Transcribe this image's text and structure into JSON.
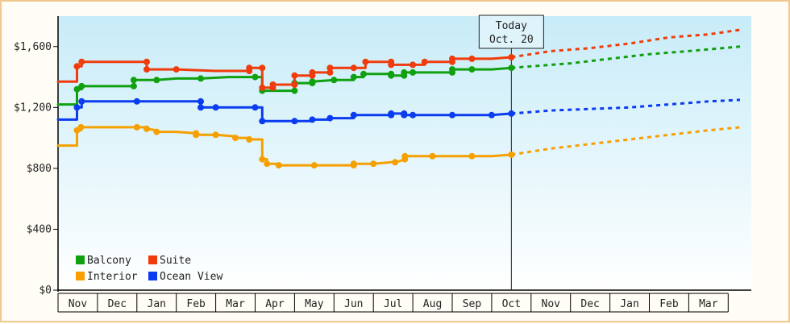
{
  "chart_data": {
    "type": "line",
    "today": {
      "title": "Today",
      "date": "Oct. 20"
    },
    "ylim": [
      0,
      1800
    ],
    "y_ticks": [
      {
        "value": 0,
        "label": "$0"
      },
      {
        "value": 400,
        "label": "$400"
      },
      {
        "value": 800,
        "label": "$800"
      },
      {
        "value": 1200,
        "label": "$1,200"
      },
      {
        "value": 1600,
        "label": "$1,600"
      }
    ],
    "x_months": [
      "Nov",
      "Dec",
      "Jan",
      "Feb",
      "Mar",
      "Apr",
      "May",
      "Jun",
      "Jul",
      "Aug",
      "Sep",
      "Oct",
      "Nov",
      "Dec",
      "Jan",
      "Feb",
      "Mar"
    ],
    "today_month_index": 11.5,
    "grid": false,
    "legend_position": "bottom-left",
    "series": [
      {
        "name": "Balcony",
        "color": "#10a010",
        "points": [
          [
            0.0,
            1220
          ],
          [
            0.48,
            1220
          ],
          [
            0.48,
            1320
          ],
          [
            0.6,
            1320
          ],
          [
            0.6,
            1340
          ],
          [
            1.0,
            1340
          ],
          [
            1.92,
            1340
          ],
          [
            1.92,
            1380
          ],
          [
            2.5,
            1380
          ],
          [
            3.0,
            1390
          ],
          [
            3.62,
            1390
          ],
          [
            4.33,
            1400
          ],
          [
            5.0,
            1400
          ],
          [
            5.18,
            1400
          ],
          [
            5.18,
            1310
          ],
          [
            5.3,
            1310
          ],
          [
            6.0,
            1310
          ],
          [
            6.0,
            1360
          ],
          [
            6.45,
            1360
          ],
          [
            6.45,
            1370
          ],
          [
            7.0,
            1380
          ],
          [
            7.5,
            1380
          ],
          [
            7.5,
            1400
          ],
          [
            7.75,
            1400
          ],
          [
            7.75,
            1420
          ],
          [
            8.0,
            1420
          ],
          [
            8.45,
            1420
          ],
          [
            8.45,
            1410
          ],
          [
            8.78,
            1410
          ],
          [
            8.78,
            1430
          ],
          [
            9.0,
            1430
          ],
          [
            9.55,
            1430
          ],
          [
            10.0,
            1430
          ],
          [
            10.0,
            1450
          ],
          [
            10.5,
            1450
          ],
          [
            11.0,
            1450
          ],
          [
            11.5,
            1460
          ]
        ],
        "forecast": [
          [
            11.5,
            1460
          ],
          [
            13.0,
            1490
          ],
          [
            14.0,
            1520
          ],
          [
            15.0,
            1550
          ],
          [
            16.0,
            1570
          ],
          [
            17.3,
            1600
          ]
        ]
      },
      {
        "name": "Suite",
        "color": "#f03c0c",
        "points": [
          [
            0.0,
            1370
          ],
          [
            0.48,
            1370
          ],
          [
            0.48,
            1470
          ],
          [
            0.6,
            1470
          ],
          [
            0.6,
            1500
          ],
          [
            1.0,
            1500
          ],
          [
            2.25,
            1500
          ],
          [
            2.25,
            1450
          ],
          [
            3.0,
            1450
          ],
          [
            4.0,
            1440
          ],
          [
            4.85,
            1440
          ],
          [
            4.85,
            1460
          ],
          [
            5.18,
            1460
          ],
          [
            5.18,
            1330
          ],
          [
            5.45,
            1330
          ],
          [
            5.45,
            1350
          ],
          [
            6.0,
            1350
          ],
          [
            6.0,
            1410
          ],
          [
            6.45,
            1410
          ],
          [
            6.45,
            1430
          ],
          [
            6.9,
            1430
          ],
          [
            6.9,
            1460
          ],
          [
            7.5,
            1460
          ],
          [
            7.8,
            1460
          ],
          [
            7.8,
            1500
          ],
          [
            8.0,
            1500
          ],
          [
            8.45,
            1500
          ],
          [
            8.45,
            1480
          ],
          [
            9.0,
            1480
          ],
          [
            9.3,
            1480
          ],
          [
            9.3,
            1500
          ],
          [
            9.55,
            1500
          ],
          [
            10.0,
            1500
          ],
          [
            10.0,
            1520
          ],
          [
            10.5,
            1520
          ],
          [
            11.0,
            1520
          ],
          [
            11.5,
            1530
          ]
        ],
        "forecast": [
          [
            11.5,
            1530
          ],
          [
            12.5,
            1570
          ],
          [
            13.5,
            1590
          ],
          [
            14.5,
            1620
          ],
          [
            15.5,
            1660
          ],
          [
            16.5,
            1680
          ],
          [
            17.3,
            1710
          ]
        ]
      },
      {
        "name": "Interior",
        "color": "#f5a000",
        "points": [
          [
            0.0,
            950
          ],
          [
            0.48,
            950
          ],
          [
            0.48,
            1050
          ],
          [
            0.58,
            1050
          ],
          [
            0.58,
            1070
          ],
          [
            1.0,
            1070
          ],
          [
            2.0,
            1070
          ],
          [
            2.25,
            1070
          ],
          [
            2.25,
            1060
          ],
          [
            2.5,
            1050
          ],
          [
            2.5,
            1040
          ],
          [
            3.0,
            1040
          ],
          [
            3.5,
            1030
          ],
          [
            3.5,
            1020
          ],
          [
            4.0,
            1020
          ],
          [
            4.5,
            1010
          ],
          [
            4.5,
            1000
          ],
          [
            4.85,
            1000
          ],
          [
            4.85,
            990
          ],
          [
            5.18,
            990
          ],
          [
            5.18,
            860
          ],
          [
            5.3,
            860
          ],
          [
            5.3,
            830
          ],
          [
            5.6,
            830
          ],
          [
            5.6,
            820
          ],
          [
            6.0,
            820
          ],
          [
            6.5,
            820
          ],
          [
            7.0,
            820
          ],
          [
            7.5,
            820
          ],
          [
            7.5,
            830
          ],
          [
            8.0,
            830
          ],
          [
            8.45,
            840
          ],
          [
            8.55,
            840
          ],
          [
            8.7,
            850
          ],
          [
            8.8,
            860
          ],
          [
            8.8,
            880
          ],
          [
            9.5,
            880
          ],
          [
            10.0,
            880
          ],
          [
            10.5,
            880
          ],
          [
            11.0,
            880
          ],
          [
            11.5,
            890
          ]
        ],
        "forecast": [
          [
            11.5,
            890
          ],
          [
            12.5,
            930
          ],
          [
            13.5,
            960
          ],
          [
            14.5,
            990
          ],
          [
            15.5,
            1020
          ],
          [
            16.5,
            1050
          ],
          [
            17.3,
            1070
          ]
        ]
      },
      {
        "name": "Ocean View",
        "color": "#0a3cf0",
        "points": [
          [
            0.0,
            1120
          ],
          [
            0.48,
            1120
          ],
          [
            0.48,
            1200
          ],
          [
            0.6,
            1200
          ],
          [
            0.6,
            1240
          ],
          [
            1.0,
            1240
          ],
          [
            2.0,
            1240
          ],
          [
            3.0,
            1240
          ],
          [
            3.62,
            1240
          ],
          [
            3.62,
            1200
          ],
          [
            4.0,
            1200
          ],
          [
            4.6,
            1200
          ],
          [
            5.0,
            1200
          ],
          [
            5.18,
            1200
          ],
          [
            5.18,
            1110
          ],
          [
            5.5,
            1110
          ],
          [
            6.0,
            1110
          ],
          [
            6.45,
            1110
          ],
          [
            6.45,
            1120
          ],
          [
            6.9,
            1120
          ],
          [
            6.9,
            1130
          ],
          [
            7.5,
            1130
          ],
          [
            7.5,
            1150
          ],
          [
            8.0,
            1150
          ],
          [
            8.45,
            1150
          ],
          [
            8.45,
            1160
          ],
          [
            8.78,
            1160
          ],
          [
            8.78,
            1150
          ],
          [
            9.0,
            1150
          ],
          [
            9.55,
            1150
          ],
          [
            10.0,
            1150
          ],
          [
            10.5,
            1150
          ],
          [
            11.0,
            1150
          ],
          [
            11.5,
            1160
          ]
        ],
        "forecast": [
          [
            11.5,
            1160
          ],
          [
            12.5,
            1180
          ],
          [
            13.5,
            1190
          ],
          [
            14.5,
            1200
          ],
          [
            15.5,
            1220
          ],
          [
            16.5,
            1240
          ],
          [
            17.3,
            1250
          ]
        ]
      }
    ],
    "legend": [
      {
        "name": "Balcony",
        "color": "#10a010"
      },
      {
        "name": "Suite",
        "color": "#f03c0c"
      },
      {
        "name": "Interior",
        "color": "#f5a000"
      },
      {
        "name": "Ocean View",
        "color": "#0a3cf0"
      }
    ]
  }
}
